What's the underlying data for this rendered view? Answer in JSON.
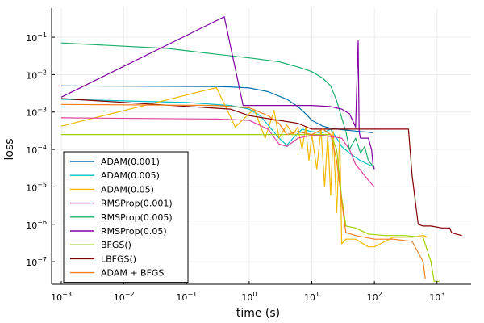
{
  "chart_data": {
    "type": "line",
    "xlabel": "time (s)",
    "ylabel": "loss",
    "x_scale": "log10",
    "y_scale": "log10",
    "xlim": [
      0.0007,
      3500
    ],
    "ylim": [
      2.5e-08,
      0.6
    ],
    "x_ticks": [
      {
        "value": 0.001,
        "label": "10",
        "exp": "−3"
      },
      {
        "value": 0.01,
        "label": "10",
        "exp": "−2"
      },
      {
        "value": 0.1,
        "label": "10",
        "exp": "−1"
      },
      {
        "value": 1,
        "label": "10",
        "exp": "0"
      },
      {
        "value": 10,
        "label": "10",
        "exp": "1"
      },
      {
        "value": 100,
        "label": "10",
        "exp": "2"
      },
      {
        "value": 1000,
        "label": "10",
        "exp": "3"
      }
    ],
    "y_ticks": [
      {
        "value": 1e-07,
        "label": "10",
        "exp": "−7"
      },
      {
        "value": 1e-06,
        "label": "10",
        "exp": "−6"
      },
      {
        "value": 1e-05,
        "label": "10",
        "exp": "−5"
      },
      {
        "value": 0.0001,
        "label": "10",
        "exp": "−4"
      },
      {
        "value": 0.001,
        "label": "10",
        "exp": "−3"
      },
      {
        "value": 0.01,
        "label": "10",
        "exp": "−2"
      },
      {
        "value": 0.1,
        "label": "10",
        "exp": "−1"
      }
    ],
    "grid": true,
    "legend_position": "bottom-left",
    "series": [
      {
        "name": "ADAM(0.001)",
        "color": "#0072B2",
        "points": [
          [
            0.001,
            0.005
          ],
          [
            0.3,
            0.0048
          ],
          [
            0.5,
            0.0047
          ],
          [
            1,
            0.0044
          ],
          [
            2,
            0.0035
          ],
          [
            4,
            0.0022
          ],
          [
            6,
            0.0014
          ],
          [
            8,
            0.0009
          ],
          [
            10,
            0.0006
          ],
          [
            15,
            0.00042
          ],
          [
            20,
            0.00037
          ],
          [
            30,
            0.00034
          ],
          [
            50,
            0.00031
          ],
          [
            80,
            0.00029
          ],
          [
            95,
            0.00028
          ]
        ]
      },
      {
        "name": "ADAM(0.005)",
        "color": "#00BFC4",
        "points": [
          [
            0.001,
            0.0022
          ],
          [
            0.1,
            0.0018
          ],
          [
            0.5,
            0.0015
          ],
          [
            1,
            0.0012
          ],
          [
            1.5,
            0.0008
          ],
          [
            2,
            0.00045
          ],
          [
            3,
            0.0002
          ],
          [
            4,
            0.00013
          ],
          [
            5,
            0.0002
          ],
          [
            7,
            0.00035
          ],
          [
            10,
            0.0003
          ],
          [
            15,
            0.00028
          ],
          [
            20,
            0.00035
          ],
          [
            25,
            0.0002
          ],
          [
            30,
            0.00012
          ],
          [
            40,
            8e-05
          ],
          [
            60,
            5e-05
          ],
          [
            80,
            4e-05
          ],
          [
            95,
            3.5e-05
          ]
        ]
      },
      {
        "name": "ADAM(0.05)",
        "color": "#F5B800",
        "points": [
          [
            0.001,
            0.00042
          ],
          [
            0.3,
            0.0045
          ],
          [
            0.6,
            0.0004
          ],
          [
            1.2,
            0.0012
          ],
          [
            1.8,
            0.0002
          ],
          [
            2.5,
            0.0011
          ],
          [
            3,
            0.0002
          ],
          [
            4,
            0.00045
          ],
          [
            5,
            0.00025
          ],
          [
            6,
            0.0004
          ],
          [
            7,
            0.0001
          ],
          [
            8,
            0.0004
          ],
          [
            9,
            5e-05
          ],
          [
            10,
            0.00025
          ],
          [
            12,
            3e-05
          ],
          [
            14,
            0.00035
          ],
          [
            16,
            1e-05
          ],
          [
            18,
            0.00025
          ],
          [
            20,
            6e-06
          ],
          [
            22,
            0.0003
          ],
          [
            25,
            2e-06
          ],
          [
            28,
            0.00025
          ],
          [
            30,
            3e-07
          ],
          [
            35,
            4e-07
          ],
          [
            50,
            4e-07
          ],
          [
            80,
            2.5e-07
          ],
          [
            100,
            2.5e-07
          ],
          [
            200,
            4.5e-07
          ],
          [
            400,
            4.5e-07
          ],
          [
            600,
            5e-07
          ],
          [
            700,
            4.5e-07
          ]
        ]
      },
      {
        "name": "RMSProp(0.001)",
        "color": "#E040A0",
        "points": [
          [
            0.001,
            0.0007
          ],
          [
            0.3,
            0.00065
          ],
          [
            1,
            0.0006
          ],
          [
            2,
            0.00035
          ],
          [
            3,
            0.00014
          ],
          [
            4,
            0.00012
          ],
          [
            6,
            0.0002
          ],
          [
            10,
            0.00024
          ],
          [
            15,
            0.00024
          ],
          [
            20,
            0.00022
          ],
          [
            30,
            0.0002
          ],
          [
            40,
            0.0001
          ],
          [
            50,
            4e-05
          ],
          [
            70,
            2e-05
          ],
          [
            90,
            1.2e-05
          ],
          [
            100,
            1e-05
          ]
        ]
      },
      {
        "name": "RMSProp(0.005)",
        "color": "#1CB06A",
        "points": [
          [
            0.001,
            0.07
          ],
          [
            0.05,
            0.05
          ],
          [
            0.3,
            0.035
          ],
          [
            1,
            0.028
          ],
          [
            3,
            0.022
          ],
          [
            6,
            0.016
          ],
          [
            10,
            0.012
          ],
          [
            15,
            0.008
          ],
          [
            20,
            0.005
          ],
          [
            25,
            0.002
          ],
          [
            30,
            0.0007
          ],
          [
            35,
            0.0003
          ],
          [
            40,
            0.0001
          ],
          [
            50,
            0.0002
          ],
          [
            60,
            8e-05
          ],
          [
            70,
            0.00012
          ],
          [
            80,
            5e-05
          ],
          [
            90,
            4e-05
          ],
          [
            100,
            3e-05
          ]
        ]
      },
      {
        "name": "RMSProp(0.05)",
        "color": "#8000A0",
        "points": [
          [
            0.001,
            0.0025
          ],
          [
            0.4,
            0.35
          ],
          [
            0.8,
            0.0015
          ],
          [
            1,
            0.0015
          ],
          [
            5,
            0.0015
          ],
          [
            10,
            0.0015
          ],
          [
            20,
            0.0014
          ],
          [
            30,
            0.0012
          ],
          [
            40,
            0.0009
          ],
          [
            50,
            0.0004
          ],
          [
            55,
            0.08
          ],
          [
            57,
            0.0003
          ],
          [
            60,
            0.0002
          ],
          [
            70,
            0.0002
          ],
          [
            80,
            0.0002
          ],
          [
            90,
            0.0001
          ],
          [
            95,
            4e-05
          ],
          [
            100,
            3e-05
          ]
        ]
      },
      {
        "name": "BFGS()",
        "color": "#A0D000",
        "points": [
          [
            0.001,
            0.00025
          ],
          [
            1,
            0.00025
          ],
          [
            5,
            0.00025
          ],
          [
            10,
            0.00025
          ],
          [
            20,
            0.00025
          ],
          [
            25,
            0.0001
          ],
          [
            30,
            5e-06
          ],
          [
            35,
            9e-07
          ],
          [
            50,
            8e-07
          ],
          [
            80,
            5.5e-07
          ],
          [
            150,
            5e-07
          ],
          [
            300,
            5e-07
          ],
          [
            600,
            4.5e-07
          ],
          [
            800,
            1e-07
          ],
          [
            900,
            3e-08
          ],
          [
            1100,
            3e-08
          ]
        ]
      },
      {
        "name": "LBFGS()",
        "color": "#800000",
        "points": [
          [
            0.001,
            0.0023
          ],
          [
            0.5,
            0.0012
          ],
          [
            1,
            0.0008
          ],
          [
            3,
            0.0006
          ],
          [
            6,
            0.0005
          ],
          [
            10,
            0.00035
          ],
          [
            20,
            0.00035
          ],
          [
            50,
            0.00035
          ],
          [
            100,
            0.00035
          ],
          [
            200,
            0.00035
          ],
          [
            350,
            0.00035
          ],
          [
            400,
            2e-05
          ],
          [
            500,
            1e-06
          ],
          [
            600,
            9e-07
          ],
          [
            800,
            9e-07
          ],
          [
            1200,
            8e-07
          ],
          [
            1600,
            8e-07
          ],
          [
            1700,
            6e-07
          ],
          [
            2000,
            5.5e-07
          ],
          [
            2500,
            5e-07
          ]
        ]
      },
      {
        "name": "ADAM + BFGS",
        "color": "#F58020",
        "points": [
          [
            0.001,
            0.0016
          ],
          [
            0.3,
            0.0015
          ],
          [
            1,
            0.0013
          ],
          [
            2,
            0.0008
          ],
          [
            3,
            0.0005
          ],
          [
            4,
            0.00025
          ],
          [
            6,
            0.0003
          ],
          [
            10,
            0.00025
          ],
          [
            15,
            0.00035
          ],
          [
            20,
            0.00025
          ],
          [
            25,
            5e-05
          ],
          [
            30,
            4e-06
          ],
          [
            35,
            6e-07
          ],
          [
            50,
            5e-07
          ],
          [
            100,
            4e-07
          ],
          [
            200,
            4e-07
          ],
          [
            400,
            3.5e-07
          ],
          [
            600,
            1e-07
          ],
          [
            650,
            3.5e-08
          ]
        ]
      }
    ]
  }
}
